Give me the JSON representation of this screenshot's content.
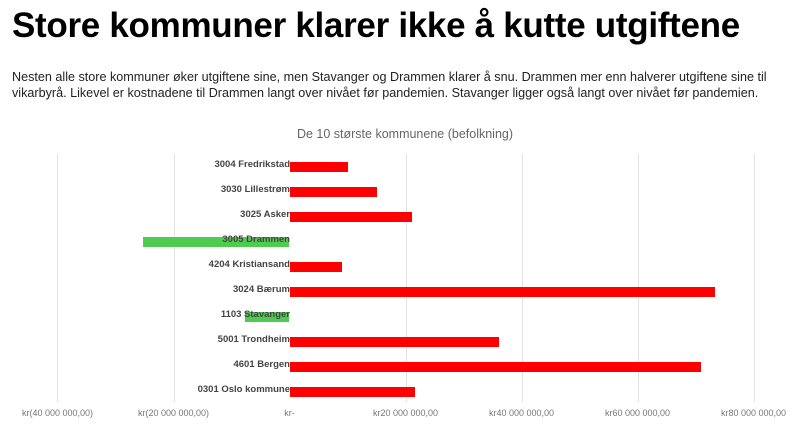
{
  "header": {
    "title": "Store kommuner klarer ikke å kutte utgiftene",
    "intro": "Nesten alle store kommuner øker utgiftene sine, men Stavanger og Drammen klarer å snu. Drammen mer enn halverer utgiftene sine til vikarbyrå. Likevel er kostnadene til Drammen langt over nivået før pandemien. Stavanger ligger også langt over nivået før pandemien."
  },
  "chart_data": {
    "type": "bar",
    "orientation": "horizontal",
    "title": "De 10 største kommunene (befolkning)",
    "xlabel": "",
    "ylabel": "",
    "xlim": [
      -40000000,
      80000000
    ],
    "grid": true,
    "legend": "none",
    "categories": [
      "3004 Fredrikstad",
      "3030 Lillestrøm",
      "3025 Asker",
      "3005 Drammen",
      "4204 Kristiansand",
      "3024 Bærum",
      "1103 Stavanger",
      "5001 Trondheim",
      "4601 Bergen",
      "0301 Oslo kommune"
    ],
    "values": [
      10000000,
      15000000,
      21200000,
      -25200000,
      9000000,
      73400000,
      -7600000,
      36200000,
      71000000,
      21600000
    ],
    "colors": {
      "positive": "#ff0000",
      "negative": "#4fcc4f"
    },
    "tick_values": [
      -40000000,
      -20000000,
      0,
      20000000,
      40000000,
      60000000,
      80000000
    ],
    "tick_labels": [
      "kr(40 000 000,00)",
      "kr(20 000 000,00)",
      "kr-",
      "kr20 000 000,00",
      "kr40 000 000,00",
      "kr60 000 000,00",
      "kr80 000 000,00"
    ]
  }
}
